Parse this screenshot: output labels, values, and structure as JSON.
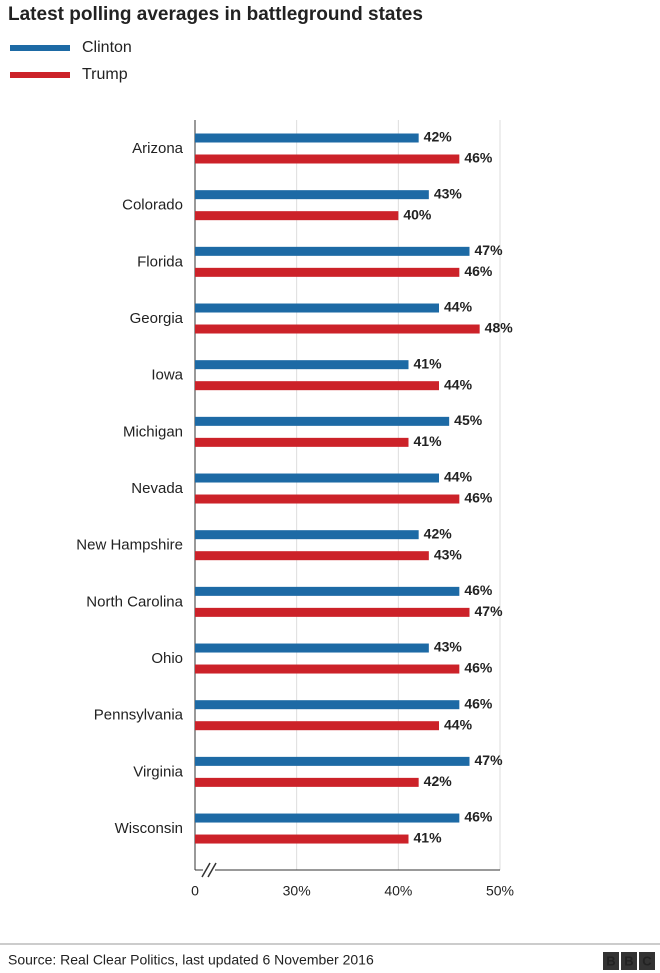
{
  "chart_data": {
    "type": "bar",
    "orientation": "horizontal",
    "title": "Latest polling averages in battleground states",
    "categories": [
      "Arizona",
      "Colorado",
      "Florida",
      "Georgia",
      "Iowa",
      "Michigan",
      "Nevada",
      "New Hampshire",
      "North Carolina",
      "Ohio",
      "Pennsylvania",
      "Virginia",
      "Wisconsin"
    ],
    "series": [
      {
        "name": "Clinton",
        "color": "#1d6aa5",
        "values": [
          42,
          43,
          47,
          44,
          41,
          45,
          44,
          42,
          46,
          43,
          46,
          47,
          46
        ],
        "value_labels": [
          "42%",
          "43%",
          "47%",
          "44%",
          "41%",
          "45%",
          "44%",
          "42%",
          "46%",
          "43%",
          "46%",
          "47%",
          "46%"
        ]
      },
      {
        "name": "Trump",
        "color": "#cc2229",
        "values": [
          46,
          40,
          46,
          48,
          44,
          41,
          46,
          43,
          47,
          46,
          44,
          42,
          41
        ],
        "value_labels": [
          "46%",
          "40%",
          "46%",
          "48%",
          "44%",
          "41%",
          "46%",
          "43%",
          "47%",
          "46%",
          "44%",
          "42%",
          "41%"
        ]
      }
    ],
    "xlim": [
      0,
      50
    ],
    "xticks": [
      0,
      {
        "value": 30,
        "label": "30%"
      },
      {
        "value": 40,
        "label": "40%"
      },
      {
        "value": 50,
        "label": "50%"
      }
    ],
    "axis_break": true,
    "grid": true,
    "source": "Source: Real Clear Politics, last updated 6 November 2016",
    "logo": [
      "B",
      "B",
      "C"
    ]
  }
}
